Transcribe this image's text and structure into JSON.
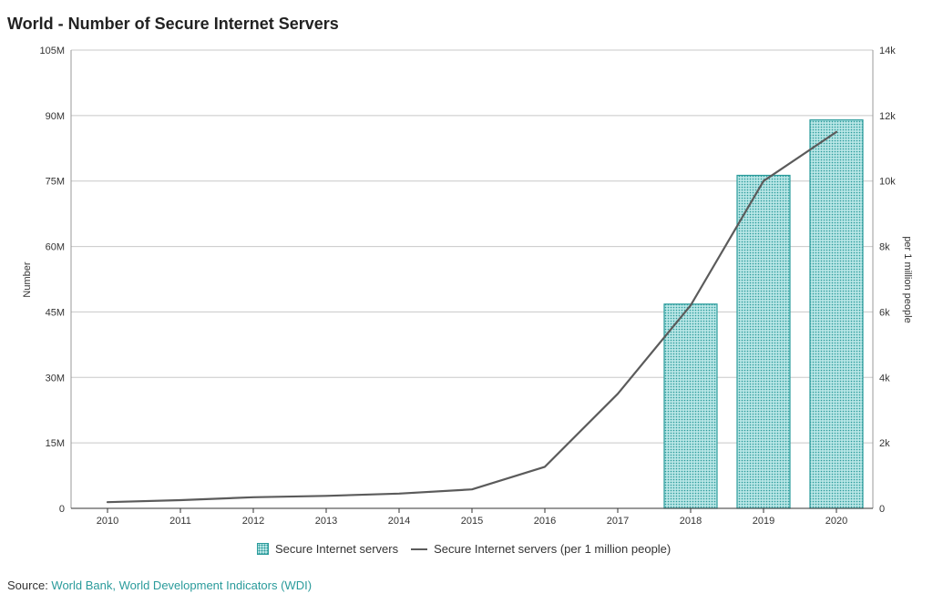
{
  "title": "World - Number of Secure Internet Servers",
  "source": {
    "prefix": "Source: ",
    "link": "World Bank, World Development Indicators (WDI)"
  },
  "colors": {
    "bar_fill": "#b8e6e6",
    "bar_stroke": "#2a9b9b",
    "line": "#5b5b5b",
    "grid": "#c8c8c8",
    "link": "#2a9b9b"
  },
  "chart_data": {
    "type": "bar",
    "categories": [
      "2010",
      "2011",
      "2012",
      "2013",
      "2014",
      "2015",
      "2016",
      "2017",
      "2018",
      "2019",
      "2020"
    ],
    "series": [
      {
        "name": "Secure Internet servers",
        "type": "bar",
        "axis": "left",
        "values": [
          null,
          null,
          null,
          null,
          null,
          null,
          null,
          null,
          46800000,
          76300000,
          89000000
        ]
      },
      {
        "name": "Secure Internet servers (per 1 million people)",
        "type": "line",
        "axis": "right",
        "values": [
          190,
          250,
          340,
          380,
          450,
          580,
          1270,
          3500,
          6200,
          10000,
          11500
        ]
      }
    ],
    "ylabel": "Number",
    "y2label": "per 1 million people",
    "ylim": [
      0,
      105000000
    ],
    "y2lim": [
      0,
      14000
    ],
    "yticks": [
      "0",
      "15M",
      "30M",
      "45M",
      "60M",
      "75M",
      "90M",
      "105M"
    ],
    "y2ticks": [
      "0",
      "2k",
      "4k",
      "6k",
      "8k",
      "10k",
      "12k",
      "14k"
    ],
    "legend_position": "bottom",
    "grid": true
  }
}
